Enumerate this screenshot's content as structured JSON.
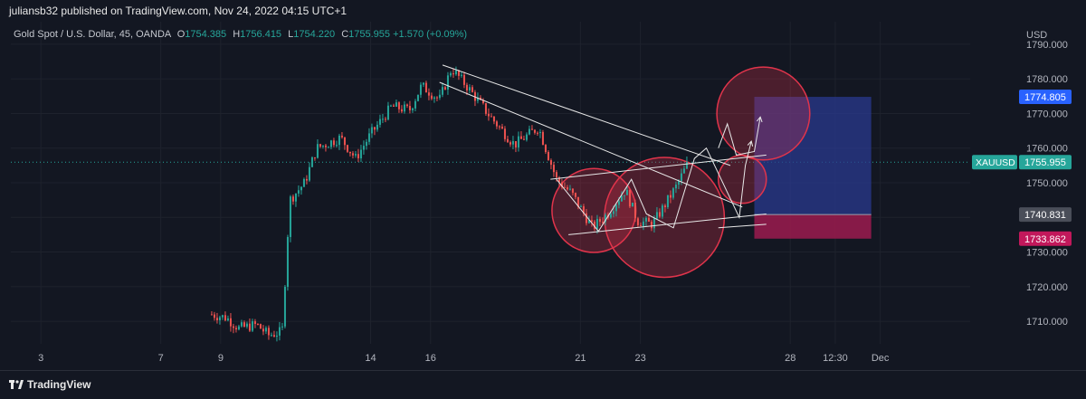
{
  "header": {
    "published": "juliansb32 published on TradingView.com, Nov 24, 2022 04:15 UTC+1"
  },
  "legend": {
    "symbol": "Gold Spot / U.S. Dollar, 45, OANDA",
    "o_label": "O",
    "o": "1754.385",
    "h_label": "H",
    "h": "1756.415",
    "l_label": "L",
    "l": "1754.220",
    "c_label": "C",
    "c": "1755.955",
    "change": "+1.570 (+0.09%)"
  },
  "footer": {
    "brand": "TradingView"
  },
  "colors": {
    "background": "#131722",
    "grid": "#1e222d",
    "up": "#26a69a",
    "down": "#ef5350",
    "target_zone": "#2a3a8f",
    "stop_zone": "#9c1b4f",
    "circle": "#e0344b",
    "lines": "#e8e8e8"
  },
  "chart_data": {
    "type": "candlestick",
    "ylabel": "USD",
    "ylim": [
      1703.5,
      1796.5
    ],
    "yticks": [
      1710,
      1720,
      1730,
      1740,
      1750,
      1760,
      1770,
      1780,
      1790
    ],
    "ytick_labels": [
      "1710.000",
      "1720.000",
      "1730.000",
      "1740.000",
      "1750.000",
      "1760.000",
      "1770.000",
      "1780.000",
      "1790.000"
    ],
    "xlim": [
      2.0,
      34.0
    ],
    "xticks": [
      {
        "x": 3,
        "label": "3"
      },
      {
        "x": 7,
        "label": "7"
      },
      {
        "x": 9,
        "label": "9"
      },
      {
        "x": 14,
        "label": "14"
      },
      {
        "x": 16,
        "label": "16"
      },
      {
        "x": 21,
        "label": "21"
      },
      {
        "x": 23,
        "label": "23"
      },
      {
        "x": 28,
        "label": "28"
      },
      {
        "x": 29.5,
        "label": "12:30"
      },
      {
        "x": 31,
        "label": "Dec"
      }
    ],
    "price_anchors": [
      {
        "x": 8.7,
        "y": 1712
      },
      {
        "x": 9.2,
        "y": 1711
      },
      {
        "x": 9.6,
        "y": 1708
      },
      {
        "x": 10.2,
        "y": 1709
      },
      {
        "x": 10.6,
        "y": 1706
      },
      {
        "x": 11.05,
        "y": 1707
      },
      {
        "x": 11.3,
        "y": 1745
      },
      {
        "x": 11.8,
        "y": 1750
      },
      {
        "x": 12.2,
        "y": 1760
      },
      {
        "x": 13.0,
        "y": 1763
      },
      {
        "x": 13.5,
        "y": 1757
      },
      {
        "x": 14.0,
        "y": 1764
      },
      {
        "x": 14.7,
        "y": 1772
      },
      {
        "x": 15.3,
        "y": 1771
      },
      {
        "x": 15.7,
        "y": 1778
      },
      {
        "x": 16.3,
        "y": 1774
      },
      {
        "x": 16.7,
        "y": 1783
      },
      {
        "x": 17.2,
        "y": 1778
      },
      {
        "x": 18.0,
        "y": 1769
      },
      {
        "x": 18.8,
        "y": 1761
      },
      {
        "x": 19.6,
        "y": 1766
      },
      {
        "x": 20.2,
        "y": 1751
      },
      {
        "x": 20.7,
        "y": 1747
      },
      {
        "x": 21.4,
        "y": 1737
      },
      {
        "x": 21.9,
        "y": 1741
      },
      {
        "x": 22.5,
        "y": 1748
      },
      {
        "x": 22.9,
        "y": 1739
      },
      {
        "x": 23.4,
        "y": 1738
      },
      {
        "x": 23.7,
        "y": 1742
      },
      {
        "x": 24.2,
        "y": 1749
      },
      {
        "x": 24.6,
        "y": 1755.955
      }
    ],
    "last_price": 1755.955,
    "position": {
      "target": 1774.805,
      "entry": 1740.831,
      "stop": 1733.862,
      "x_start": 26.8,
      "x_end": 30.7
    },
    "price_labels": [
      {
        "value": 1774.805,
        "label": "1774.805",
        "color": "#2962ff"
      },
      {
        "value": 1755.955,
        "label": "1755.955",
        "symbol": "XAUUSD",
        "color": "#26a69a"
      },
      {
        "value": 1740.831,
        "label": "1740.831",
        "color": "#4a4e59"
      },
      {
        "value": 1733.862,
        "label": "1733.862",
        "color": "#c2185b"
      }
    ],
    "trendlines": [
      {
        "from": [
          16.4,
          1784
        ],
        "to": [
          26.0,
          1755
        ]
      },
      {
        "from": [
          16.3,
          1779
        ],
        "to": [
          26.4,
          1743
        ]
      },
      {
        "from": [
          20.0,
          1751
        ],
        "to": [
          27.2,
          1758
        ]
      },
      {
        "from": [
          20.6,
          1735
        ],
        "to": [
          27.2,
          1741
        ]
      },
      {
        "from": [
          25.6,
          1737
        ],
        "to": [
          27.2,
          1738
        ]
      }
    ],
    "zigzags": [
      [
        [
          20.2,
          1751
        ],
        [
          21.6,
          1736
        ],
        [
          22.7,
          1751
        ],
        [
          23.2,
          1741
        ],
        [
          24.1,
          1737
        ],
        [
          24.8,
          1757
        ],
        [
          25.2,
          1760
        ],
        [
          26.3,
          1740
        ],
        [
          26.5,
          1755
        ],
        [
          26.7,
          1762
        ]
      ],
      [
        [
          25.6,
          1760
        ],
        [
          25.9,
          1767
        ],
        [
          26.2,
          1758
        ],
        [
          26.8,
          1759
        ],
        [
          27.0,
          1769
        ]
      ]
    ],
    "circles": [
      {
        "cx": 21.45,
        "cy": 1742,
        "r": 1.4
      },
      {
        "cx": 23.8,
        "cy": 1740,
        "r": 2.0
      },
      {
        "cx": 27.1,
        "cy": 1770,
        "r": 1.55
      },
      {
        "cx": 26.4,
        "cy": 1751,
        "r": 0.8
      }
    ]
  }
}
